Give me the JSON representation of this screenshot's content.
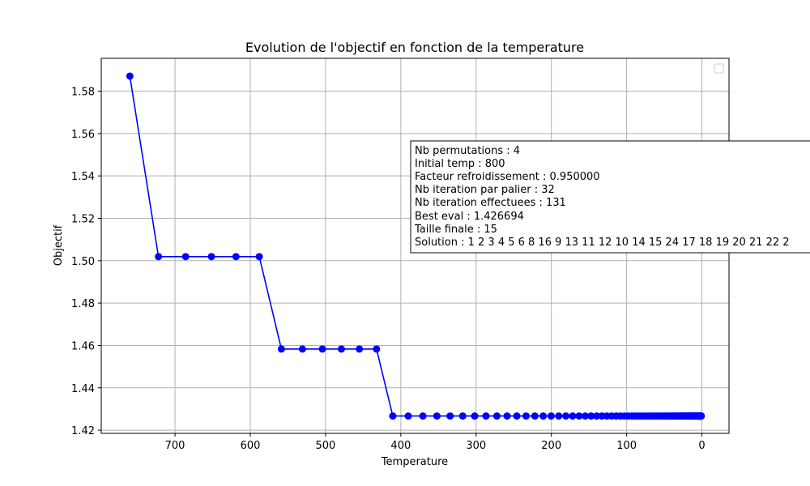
{
  "chart_data": {
    "type": "line",
    "title": "Evolution de l'objectif en fonction de la temperature",
    "xlabel": "Temperature",
    "ylabel": "Objectif",
    "xlim": [
      798,
      -36
    ],
    "ylim": [
      1.4185,
      1.5955
    ],
    "x_inverted": true,
    "x_ticks": [
      700,
      600,
      500,
      400,
      300,
      200,
      100,
      0
    ],
    "y_ticks": [
      1.42,
      1.44,
      1.46,
      1.48,
      1.5,
      1.52,
      1.54,
      1.56,
      1.58
    ],
    "y_tick_labels": [
      "1.42",
      "1.44",
      "1.46",
      "1.48",
      "1.50",
      "1.52",
      "1.54",
      "1.56",
      "1.58"
    ],
    "grid": true,
    "legend": {
      "placement": "top-right",
      "entries": []
    },
    "series_color": "#0000ff",
    "initial_temp": 800,
    "cooling_factor": 0.95,
    "point_count": 131,
    "stages": [
      {
        "from_iteration": 1,
        "to_iteration": 1,
        "value": 1.5871
      },
      {
        "from_iteration": 2,
        "to_iteration": 6,
        "value": 1.5019
      },
      {
        "from_iteration": 7,
        "to_iteration": 12,
        "value": 1.4583
      },
      {
        "from_iteration": 13,
        "to_iteration": 131,
        "value": 1.426694
      }
    ],
    "annotation_lines": [
      "Nb permutations : 4",
      "Initial temp : 800",
      "Facteur refroidissement : 0.950000",
      "Nb iteration par palier : 32",
      "Nb iteration effectuees : 131",
      "Best eval : 1.426694",
      "Taille finale : 15",
      "Solution : 1 2 3 4 5 6 8 16 9 13 11 12 10 14 15 24 17 18 19 20 21 22 2"
    ]
  }
}
